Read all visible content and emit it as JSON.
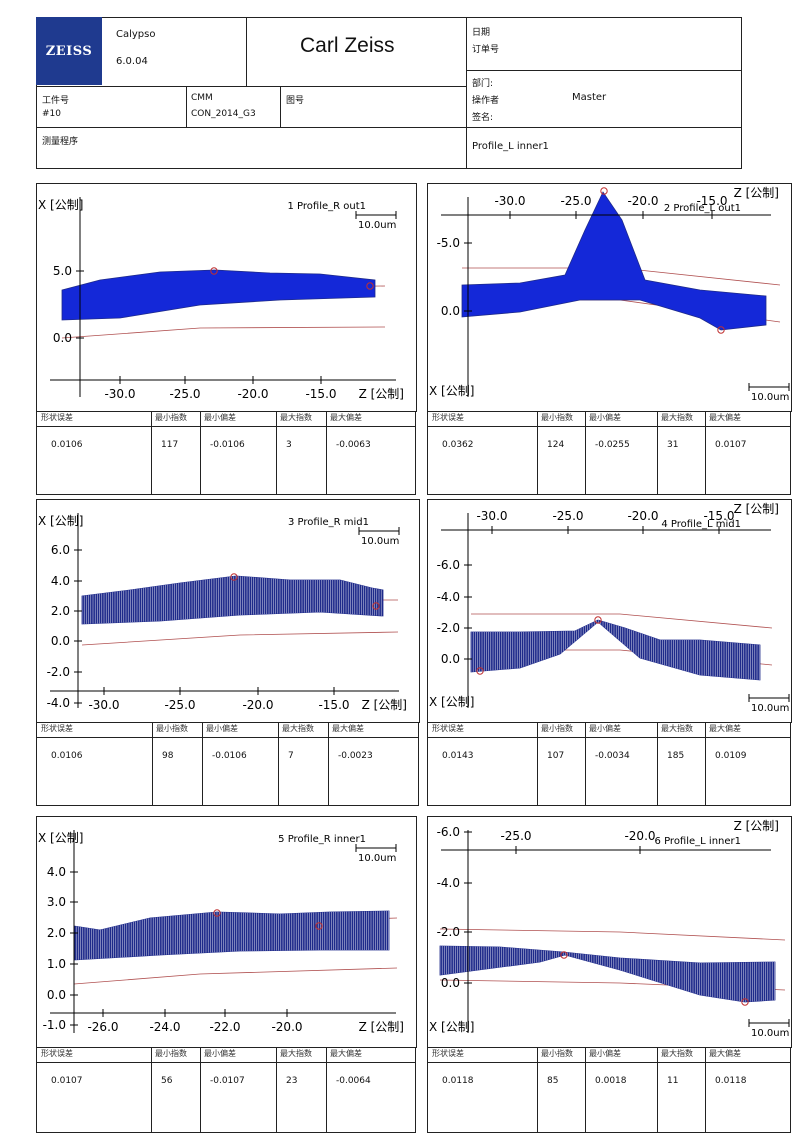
{
  "header": {
    "logo_text": "ZEISS",
    "software": "Calypso",
    "version": "6.0.04",
    "brand": "Carl Zeiss",
    "date_label": "日期",
    "order_label": "订单号",
    "dept_label": "部门:",
    "operator_label": "操作者",
    "operator_value": "Master",
    "sign_label": "签名:",
    "part_label": "工件号",
    "part_value": "#10",
    "cmm_label": "CMM",
    "cmm_value": "CON_2014_G3",
    "drawing_label": "图号",
    "program_label": "测量程序",
    "program_value": "Profile_L inner1"
  },
  "colors": {
    "fill": "#1428d8",
    "fill_hatch": "#1e2a8a",
    "limit": "#b05050",
    "axis": "#000000"
  },
  "table_headers": [
    "形状误差",
    "最小指数",
    "最小偏差",
    "最大指数",
    "最大偏差"
  ],
  "panels": [
    {
      "num": "1",
      "name": "Profile_R out1",
      "scale": "10.0um",
      "xlabel": "Z [公制]",
      "ylabel": "X [公制]",
      "z_ticks": [
        "-30.0",
        "-25.0",
        "-20.0",
        "-15.0"
      ],
      "x_ticks": [
        "5.0",
        "0.0"
      ],
      "table": [
        "0.0106",
        "117",
        "-0.0106",
        "3",
        "-0.0063"
      ]
    },
    {
      "num": "2",
      "name": "Profile_L out1",
      "scale": "10.0um",
      "xlabel": "Z [公制]",
      "ylabel": "X [公制]",
      "z_ticks": [
        "-30.0",
        "-25.0",
        "-20.0",
        "-15.0"
      ],
      "x_ticks": [
        "-5.0",
        "0.0"
      ],
      "table": [
        "0.0362",
        "124",
        "-0.0255",
        "31",
        "0.0107"
      ]
    },
    {
      "num": "3",
      "name": "Profile_R mid1",
      "scale": "10.0um",
      "xlabel": "Z [公制]",
      "ylabel": "X [公制]",
      "z_ticks": [
        "-30.0",
        "-25.0",
        "-20.0",
        "-15.0"
      ],
      "x_ticks": [
        "6.0",
        "4.0",
        "2.0",
        "0.0",
        "-2.0",
        "-4.0"
      ],
      "table": [
        "0.0106",
        "98",
        "-0.0106",
        "7",
        "-0.0023"
      ]
    },
    {
      "num": "4",
      "name": "Profile_L mid1",
      "scale": "10.0um",
      "xlabel": "Z [公制]",
      "ylabel": "X [公制]",
      "z_ticks": [
        "-30.0",
        "-25.0",
        "-20.0",
        "-15.0"
      ],
      "x_ticks": [
        "-6.0",
        "-4.0",
        "-2.0",
        "0.0"
      ],
      "table": [
        "0.0143",
        "107",
        "-0.0034",
        "185",
        "0.0109"
      ]
    },
    {
      "num": "5",
      "name": "Profile_R inner1",
      "scale": "10.0um",
      "xlabel": "Z [公制]",
      "ylabel": "X [公制]",
      "z_ticks": [
        "-26.0",
        "-24.0",
        "-22.0",
        "-20.0"
      ],
      "x_ticks": [
        "4.0",
        "3.0",
        "2.0",
        "1.0",
        "0.0",
        "-1.0"
      ],
      "table": [
        "0.0107",
        "56",
        "-0.0107",
        "23",
        "-0.0064"
      ]
    },
    {
      "num": "6",
      "name": "Profile_L inner1",
      "scale": "10.0um",
      "xlabel": "Z [公制]",
      "ylabel": "X [公制]",
      "z_ticks": [
        "-25.0",
        "-20.0"
      ],
      "x_ticks": [
        "-6.0",
        "-4.0",
        "-2.0",
        "0.0"
      ],
      "table": [
        "0.0118",
        "85",
        "0.0018",
        "11",
        "0.0118"
      ]
    }
  ]
}
